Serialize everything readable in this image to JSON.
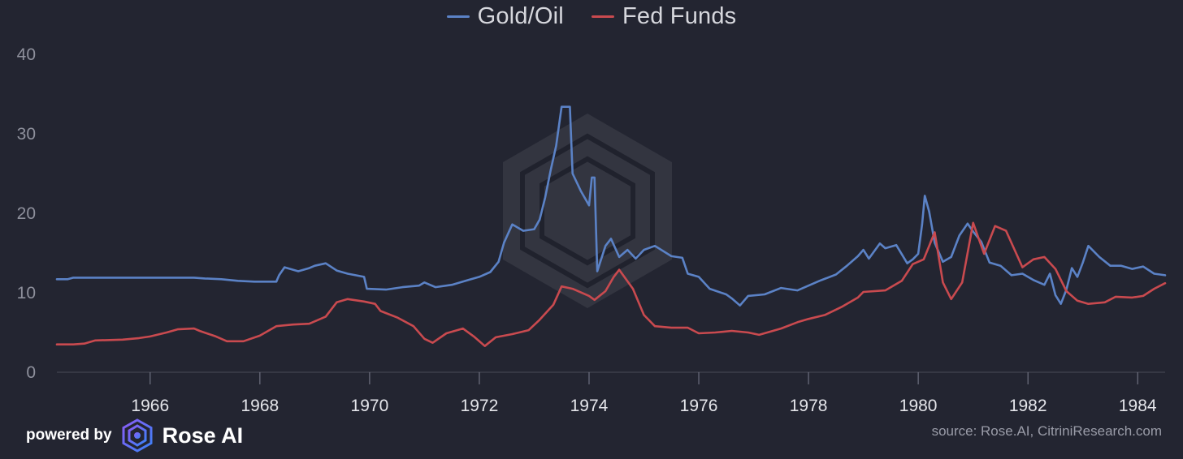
{
  "legend": {
    "items": [
      {
        "label": "Gold/Oil",
        "color": "#5b82c6"
      },
      {
        "label": "Fed Funds",
        "color": "#c94a4f"
      }
    ]
  },
  "footer": {
    "powered_by": "powered by",
    "brand": "Rose AI",
    "source": "source: Rose.AI, CitriniResearch.com"
  },
  "chart_data": {
    "type": "line",
    "title": "",
    "xlabel": "",
    "ylabel": "",
    "xlim": [
      1964.3,
      1984.5
    ],
    "ylim": [
      0,
      40
    ],
    "yticks": [
      0,
      10,
      20,
      30,
      40
    ],
    "xticks": [
      1966,
      1968,
      1970,
      1972,
      1974,
      1976,
      1978,
      1980,
      1982,
      1984
    ],
    "grid": false,
    "legend_position": "top-center",
    "series": [
      {
        "name": "Gold/Oil",
        "color": "#5b82c6",
        "points": [
          [
            1964.3,
            11.7
          ],
          [
            1964.5,
            11.7
          ],
          [
            1964.6,
            11.9
          ],
          [
            1966.0,
            11.9
          ],
          [
            1966.8,
            11.9
          ],
          [
            1967.0,
            11.8
          ],
          [
            1967.3,
            11.7
          ],
          [
            1967.6,
            11.5
          ],
          [
            1967.9,
            11.4
          ],
          [
            1968.3,
            11.4
          ],
          [
            1968.35,
            12.2
          ],
          [
            1968.45,
            13.2
          ],
          [
            1968.7,
            12.7
          ],
          [
            1968.9,
            13.1
          ],
          [
            1969.0,
            13.4
          ],
          [
            1969.2,
            13.7
          ],
          [
            1969.4,
            12.8
          ],
          [
            1969.6,
            12.4
          ],
          [
            1969.9,
            12.0
          ],
          [
            1969.95,
            10.5
          ],
          [
            1970.3,
            10.4
          ],
          [
            1970.6,
            10.7
          ],
          [
            1970.9,
            10.9
          ],
          [
            1971.0,
            11.3
          ],
          [
            1971.2,
            10.7
          ],
          [
            1971.5,
            11.0
          ],
          [
            1971.8,
            11.6
          ],
          [
            1972.0,
            12.0
          ],
          [
            1972.2,
            12.6
          ],
          [
            1972.35,
            13.9
          ],
          [
            1972.45,
            16.3
          ],
          [
            1972.6,
            18.6
          ],
          [
            1972.8,
            17.8
          ],
          [
            1973.0,
            18.0
          ],
          [
            1973.1,
            19.2
          ],
          [
            1973.2,
            22.0
          ],
          [
            1973.3,
            25.4
          ],
          [
            1973.4,
            28.5
          ],
          [
            1973.5,
            33.4
          ],
          [
            1973.65,
            33.4
          ],
          [
            1973.7,
            25.0
          ],
          [
            1973.85,
            22.8
          ],
          [
            1974.0,
            21.0
          ],
          [
            1974.05,
            24.5
          ],
          [
            1974.1,
            24.5
          ],
          [
            1974.15,
            12.7
          ],
          [
            1974.3,
            15.9
          ],
          [
            1974.4,
            16.8
          ],
          [
            1974.55,
            14.5
          ],
          [
            1974.7,
            15.4
          ],
          [
            1974.85,
            14.3
          ],
          [
            1975.0,
            15.4
          ],
          [
            1975.2,
            15.9
          ],
          [
            1975.5,
            14.6
          ],
          [
            1975.7,
            14.4
          ],
          [
            1975.8,
            12.4
          ],
          [
            1976.0,
            12.0
          ],
          [
            1976.2,
            10.5
          ],
          [
            1976.5,
            9.8
          ],
          [
            1976.6,
            9.3
          ],
          [
            1976.75,
            8.4
          ],
          [
            1976.9,
            9.6
          ],
          [
            1977.2,
            9.8
          ],
          [
            1977.5,
            10.6
          ],
          [
            1977.8,
            10.3
          ],
          [
            1978.0,
            10.9
          ],
          [
            1978.2,
            11.5
          ],
          [
            1978.5,
            12.3
          ],
          [
            1978.7,
            13.4
          ],
          [
            1978.9,
            14.6
          ],
          [
            1979.0,
            15.4
          ],
          [
            1979.1,
            14.3
          ],
          [
            1979.3,
            16.2
          ],
          [
            1979.4,
            15.6
          ],
          [
            1979.6,
            16.0
          ],
          [
            1979.8,
            13.7
          ],
          [
            1979.9,
            14.2
          ],
          [
            1980.0,
            14.9
          ],
          [
            1980.07,
            18.6
          ],
          [
            1980.12,
            22.2
          ],
          [
            1980.2,
            20.2
          ],
          [
            1980.3,
            16.3
          ],
          [
            1980.45,
            13.9
          ],
          [
            1980.6,
            14.5
          ],
          [
            1980.75,
            17.2
          ],
          [
            1980.9,
            18.7
          ],
          [
            1981.0,
            17.7
          ],
          [
            1981.15,
            16.4
          ],
          [
            1981.3,
            13.8
          ],
          [
            1981.5,
            13.4
          ],
          [
            1981.7,
            12.2
          ],
          [
            1981.9,
            12.4
          ],
          [
            1982.1,
            11.6
          ],
          [
            1982.3,
            11.0
          ],
          [
            1982.4,
            12.4
          ],
          [
            1982.5,
            9.7
          ],
          [
            1982.6,
            8.6
          ],
          [
            1982.7,
            10.4
          ],
          [
            1982.8,
            13.1
          ],
          [
            1982.9,
            12.0
          ],
          [
            1983.0,
            13.8
          ],
          [
            1983.1,
            15.9
          ],
          [
            1983.3,
            14.5
          ],
          [
            1983.5,
            13.4
          ],
          [
            1983.7,
            13.4
          ],
          [
            1983.9,
            13.0
          ],
          [
            1984.1,
            13.3
          ],
          [
            1984.3,
            12.4
          ],
          [
            1984.5,
            12.2
          ]
        ]
      },
      {
        "name": "Fed Funds",
        "color": "#c94a4f",
        "points": [
          [
            1964.3,
            3.5
          ],
          [
            1964.6,
            3.5
          ],
          [
            1964.8,
            3.6
          ],
          [
            1965.0,
            4.0
          ],
          [
            1965.5,
            4.1
          ],
          [
            1965.8,
            4.3
          ],
          [
            1966.0,
            4.5
          ],
          [
            1966.3,
            5.0
          ],
          [
            1966.5,
            5.4
          ],
          [
            1966.8,
            5.5
          ],
          [
            1966.9,
            5.2
          ],
          [
            1967.2,
            4.5
          ],
          [
            1967.4,
            3.9
          ],
          [
            1967.7,
            3.9
          ],
          [
            1968.0,
            4.6
          ],
          [
            1968.3,
            5.8
          ],
          [
            1968.6,
            6.0
          ],
          [
            1968.9,
            6.1
          ],
          [
            1969.2,
            7.0
          ],
          [
            1969.4,
            8.8
          ],
          [
            1969.6,
            9.2
          ],
          [
            1969.9,
            8.9
          ],
          [
            1970.1,
            8.6
          ],
          [
            1970.2,
            7.7
          ],
          [
            1970.5,
            6.9
          ],
          [
            1970.8,
            5.8
          ],
          [
            1971.0,
            4.2
          ],
          [
            1971.15,
            3.7
          ],
          [
            1971.4,
            4.9
          ],
          [
            1971.7,
            5.5
          ],
          [
            1971.9,
            4.5
          ],
          [
            1972.1,
            3.3
          ],
          [
            1972.3,
            4.4
          ],
          [
            1972.6,
            4.8
          ],
          [
            1972.9,
            5.3
          ],
          [
            1973.1,
            6.6
          ],
          [
            1973.35,
            8.5
          ],
          [
            1973.5,
            10.8
          ],
          [
            1973.7,
            10.5
          ],
          [
            1974.0,
            9.6
          ],
          [
            1974.1,
            9.1
          ],
          [
            1974.3,
            10.2
          ],
          [
            1974.45,
            12.0
          ],
          [
            1974.55,
            12.9
          ],
          [
            1974.8,
            10.5
          ],
          [
            1975.0,
            7.2
          ],
          [
            1975.2,
            5.8
          ],
          [
            1975.5,
            5.6
          ],
          [
            1975.8,
            5.6
          ],
          [
            1976.0,
            4.9
          ],
          [
            1976.3,
            5.0
          ],
          [
            1976.6,
            5.2
          ],
          [
            1976.9,
            5.0
          ],
          [
            1977.1,
            4.7
          ],
          [
            1977.5,
            5.5
          ],
          [
            1977.8,
            6.3
          ],
          [
            1978.0,
            6.7
          ],
          [
            1978.3,
            7.2
          ],
          [
            1978.6,
            8.2
          ],
          [
            1978.9,
            9.4
          ],
          [
            1979.0,
            10.1
          ],
          [
            1979.4,
            10.3
          ],
          [
            1979.7,
            11.5
          ],
          [
            1979.9,
            13.6
          ],
          [
            1980.1,
            14.2
          ],
          [
            1980.3,
            17.6
          ],
          [
            1980.45,
            11.3
          ],
          [
            1980.6,
            9.2
          ],
          [
            1980.8,
            11.3
          ],
          [
            1981.0,
            18.8
          ],
          [
            1981.2,
            14.9
          ],
          [
            1981.4,
            18.4
          ],
          [
            1981.6,
            17.8
          ],
          [
            1981.9,
            13.2
          ],
          [
            1982.1,
            14.2
          ],
          [
            1982.3,
            14.5
          ],
          [
            1982.5,
            13.0
          ],
          [
            1982.7,
            10.2
          ],
          [
            1982.9,
            9.0
          ],
          [
            1983.1,
            8.6
          ],
          [
            1983.4,
            8.8
          ],
          [
            1983.6,
            9.5
          ],
          [
            1983.9,
            9.4
          ],
          [
            1984.1,
            9.6
          ],
          [
            1984.3,
            10.5
          ],
          [
            1984.5,
            11.2
          ]
        ]
      }
    ]
  }
}
